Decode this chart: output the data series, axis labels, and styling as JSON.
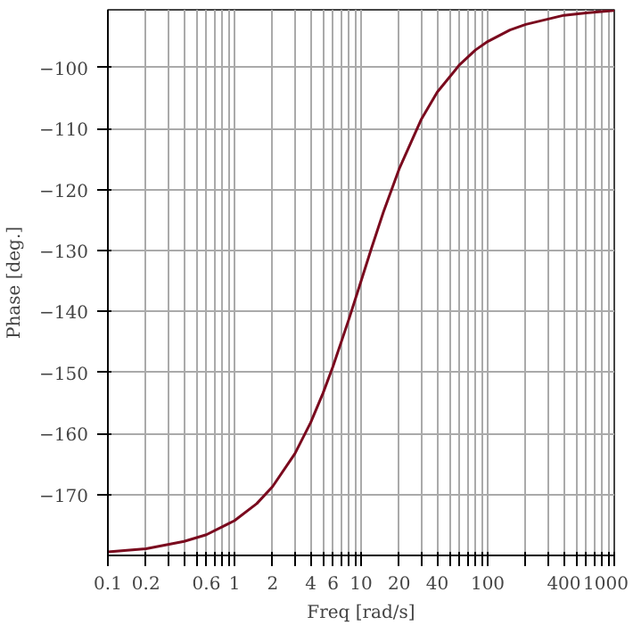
{
  "chart_data": {
    "type": "line",
    "xlabel": "Freq [rad/s]",
    "ylabel": "Phase [deg.]",
    "log": "x",
    "grid": true,
    "line_style": "solid",
    "marker": "none",
    "xlim": [
      0.1,
      1000
    ],
    "ylim": [
      -180,
      -90.5
    ],
    "xticks": [
      0.1,
      0.2,
      {
        "value": 0.3,
        "label": null
      },
      {
        "value": 0.4,
        "label": null
      },
      {
        "value": 0.5,
        "label": null
      },
      0.6,
      {
        "value": 0.7,
        "label": null
      },
      {
        "value": 0.8,
        "label": null
      },
      {
        "value": 0.9,
        "label": null
      },
      1,
      2,
      {
        "value": 3,
        "label": null
      },
      4,
      {
        "value": 5,
        "label": null
      },
      6,
      {
        "value": 7,
        "label": null
      },
      {
        "value": 8,
        "label": null
      },
      {
        "value": 9,
        "label": null
      },
      10,
      20,
      {
        "value": 30,
        "label": null
      },
      40,
      {
        "value": 50,
        "label": null
      },
      {
        "value": 60,
        "label": null
      },
      {
        "value": 70,
        "label": null
      },
      {
        "value": 80,
        "label": null
      },
      {
        "value": 90,
        "label": null
      },
      100,
      {
        "value": 200,
        "label": null
      },
      {
        "value": 300,
        "label": null
      },
      400,
      {
        "value": 500,
        "label": null
      },
      {
        "value": 600,
        "label": null
      },
      {
        "value": 700,
        "label": null
      },
      {
        "value": 800,
        "label": null
      },
      {
        "value": 900,
        "label": null
      },
      1000
    ],
    "yticks": [
      {
        "value": -170,
        "label": "−170"
      },
      {
        "value": -160,
        "label": "−160"
      },
      {
        "value": -150,
        "label": "−150"
      },
      {
        "value": -140,
        "label": "−140"
      },
      {
        "value": -130,
        "label": "−130"
      },
      {
        "value": -120,
        "label": "−120"
      },
      {
        "value": -110,
        "label": "−110"
      },
      {
        "value": -100,
        "label": "−100"
      }
    ],
    "series": [
      {
        "color": "#7a0a1e",
        "x": [
          0.1,
          0.2,
          0.4,
          0.6,
          1,
          1.5,
          2,
          3,
          4,
          5,
          6,
          8,
          10,
          12,
          15,
          20,
          30,
          40,
          60,
          80,
          100,
          150,
          200,
          400,
          600,
          1000
        ],
        "values": [
          -179.4,
          -178.9,
          -177.7,
          -176.6,
          -174.3,
          -171.5,
          -168.7,
          -163.3,
          -158.2,
          -153.4,
          -149.0,
          -141.3,
          -135.0,
          -129.8,
          -123.7,
          -116.6,
          -108.4,
          -104.0,
          -99.5,
          -97.1,
          -95.7,
          -93.8,
          -92.9,
          -91.4,
          -91.0,
          -90.6
        ]
      }
    ]
  }
}
